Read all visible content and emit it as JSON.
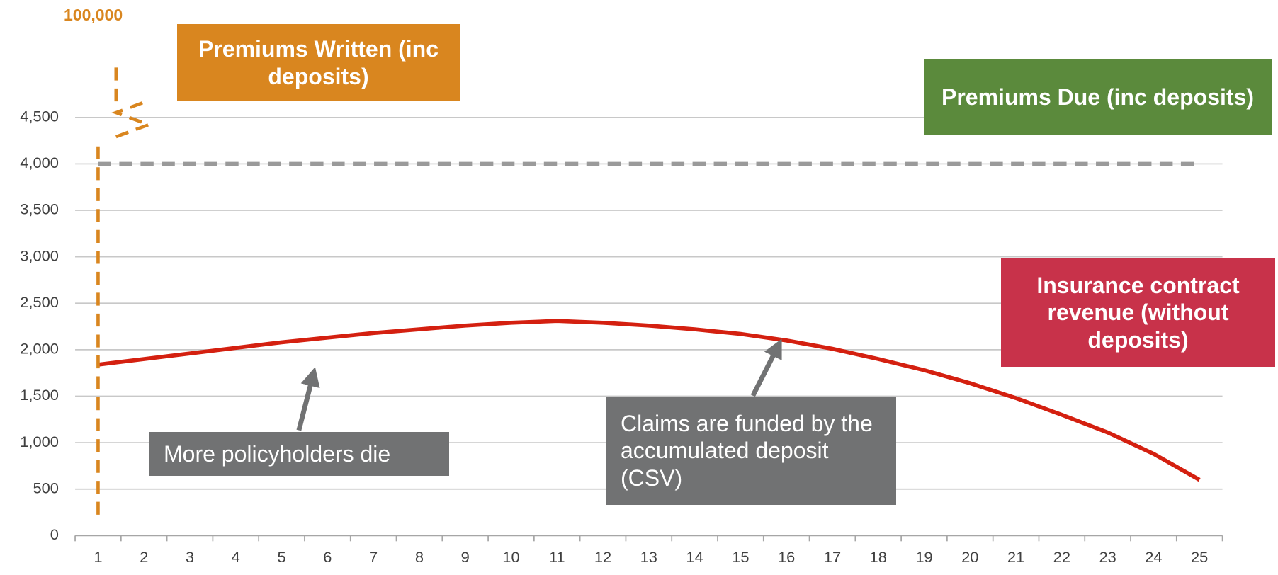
{
  "chart_data": {
    "type": "line",
    "categories": [
      "1",
      "2",
      "3",
      "4",
      "5",
      "6",
      "7",
      "8",
      "9",
      "10",
      "11",
      "12",
      "13",
      "14",
      "15",
      "16",
      "17",
      "18",
      "19",
      "20",
      "21",
      "22",
      "23",
      "24",
      "25"
    ],
    "series": [
      {
        "name": "Premiums Written (inc deposits)",
        "color": "#d9861f",
        "dashed": true,
        "values": [
          100000,
          null,
          null,
          null,
          null,
          null,
          null,
          null,
          null,
          null,
          null,
          null,
          null,
          null,
          null,
          null,
          null,
          null,
          null,
          null,
          null,
          null,
          null,
          null,
          null
        ],
        "value_labels": [
          "100,000",
          null,
          null,
          null,
          null,
          null,
          null,
          null,
          null,
          null,
          null,
          null,
          null,
          null,
          null,
          null,
          null,
          null,
          null,
          null,
          null,
          null,
          null,
          null,
          null
        ]
      },
      {
        "name": "Premiums Due (inc deposits)",
        "color": "#5b8a3c",
        "line_color": "#9a9a9a",
        "dashed": true,
        "values": [
          4000,
          4000,
          4000,
          4000,
          4000,
          4000,
          4000,
          4000,
          4000,
          4000,
          4000,
          4000,
          4000,
          4000,
          4000,
          4000,
          4000,
          4000,
          4000,
          4000,
          4000,
          4000,
          4000,
          4000,
          4000
        ]
      },
      {
        "name": "Insurance contract revenue (without deposits)",
        "color": "#c8324a",
        "line_color": "#d42010",
        "dashed": false,
        "values": [
          1840,
          1900,
          1960,
          2020,
          2080,
          2130,
          2180,
          2220,
          2260,
          2290,
          2310,
          2290,
          2260,
          2220,
          2170,
          2100,
          2010,
          1900,
          1780,
          1640,
          1480,
          1300,
          1110,
          880,
          600
        ]
      }
    ],
    "annotations": [
      "More policyholders die",
      "Claims are funded by the accumulated deposit (CSV)"
    ],
    "ylim": [
      0,
      4500
    ],
    "yticks": [
      0,
      500,
      {
        "value": 1000,
        "label": "1,000"
      },
      {
        "value": 1500,
        "label": "1,500"
      },
      {
        "value": 2000,
        "label": "2,000"
      },
      {
        "value": 2500,
        "label": "2,500"
      },
      {
        "value": 3000,
        "label": "3,000"
      },
      {
        "value": 3500,
        "label": "3,500"
      },
      {
        "value": 4000,
        "label": "4,000"
      },
      {
        "value": 4500,
        "label": "4,500"
      }
    ],
    "grid": true
  }
}
